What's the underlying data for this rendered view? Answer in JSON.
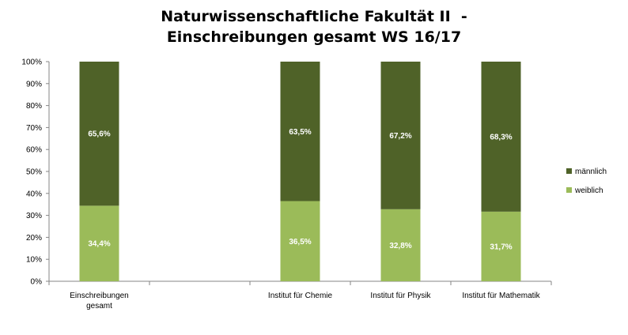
{
  "chart_data": {
    "type": "bar",
    "stacked": "percent",
    "title_lines": [
      "Naturwissenschaftliche Fakultät II  -",
      "Einschreibungen gesamt WS 16/17"
    ],
    "categories": [
      [
        "Einschreibungen",
        "gesamt"
      ],
      [
        ""
      ],
      [
        "Institut für Chemie"
      ],
      [
        "Institut für Physik"
      ],
      [
        "Institut für Mathematik"
      ]
    ],
    "series": [
      {
        "name": "weiblich",
        "color": "#9bbb59",
        "values": [
          34.4,
          null,
          36.5,
          32.8,
          31.7
        ],
        "labels": [
          "34,4%",
          "",
          "36,5%",
          "32,8%",
          "31,7%"
        ]
      },
      {
        "name": "männlich",
        "color": "#4f6228",
        "values": [
          65.6,
          null,
          63.5,
          67.2,
          68.3
        ],
        "labels": [
          "65,6%",
          "",
          "63,5%",
          "67,2%",
          "68,3%"
        ]
      }
    ],
    "ylim": [
      0,
      100
    ],
    "yticks": [
      "0%",
      "10%",
      "20%",
      "30%",
      "40%",
      "50%",
      "60%",
      "70%",
      "80%",
      "90%",
      "100%"
    ],
    "grid": false,
    "legend": {
      "position": "right",
      "order": [
        "männlich",
        "weiblich"
      ]
    }
  }
}
